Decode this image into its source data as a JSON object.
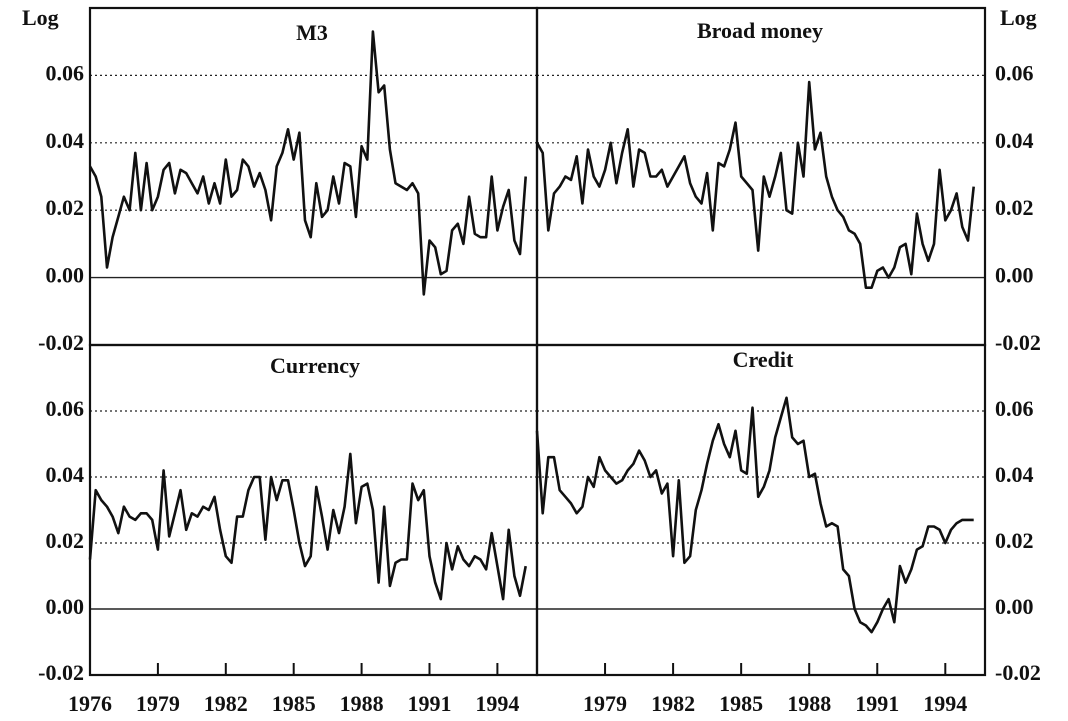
{
  "chart_data": [
    {
      "type": "line",
      "title": "M3",
      "ylabel": "Log",
      "color": "#111111",
      "x": [
        1976,
        1976.25,
        1976.5,
        1976.75,
        1977,
        1977.25,
        1977.5,
        1977.75,
        1978,
        1978.25,
        1978.5,
        1978.75,
        1979,
        1979.25,
        1979.5,
        1979.75,
        1980,
        1980.25,
        1980.5,
        1980.75,
        1981,
        1981.25,
        1981.5,
        1981.75,
        1982,
        1982.25,
        1982.5,
        1982.75,
        1983,
        1983.25,
        1983.5,
        1983.75,
        1984,
        1984.25,
        1984.5,
        1984.75,
        1985,
        1985.25,
        1985.5,
        1985.75,
        1986,
        1986.25,
        1986.5,
        1986.75,
        1987,
        1987.25,
        1987.5,
        1987.75,
        1988,
        1988.25,
        1988.5,
        1988.75,
        1989,
        1989.25,
        1989.5,
        1989.75,
        1990,
        1990.25,
        1990.5,
        1990.75,
        1991,
        1991.25,
        1991.5,
        1991.75,
        1992,
        1992.25,
        1992.5,
        1992.75,
        1993,
        1993.25,
        1993.5,
        1993.75,
        1994,
        1994.25,
        1994.5,
        1994.75,
        1995,
        1995.25
      ],
      "values": [
        0.033,
        0.03,
        0.024,
        0.003,
        0.012,
        0.018,
        0.024,
        0.02,
        0.037,
        0.02,
        0.034,
        0.02,
        0.024,
        0.032,
        0.034,
        0.025,
        0.032,
        0.031,
        0.028,
        0.025,
        0.03,
        0.022,
        0.028,
        0.022,
        0.035,
        0.024,
        0.026,
        0.035,
        0.033,
        0.027,
        0.031,
        0.026,
        0.017,
        0.033,
        0.037,
        0.044,
        0.035,
        0.043,
        0.017,
        0.012,
        0.028,
        0.018,
        0.02,
        0.03,
        0.022,
        0.034,
        0.033,
        0.018,
        0.039,
        0.035,
        0.073,
        0.055,
        0.057,
        0.038,
        0.028,
        0.027,
        0.026,
        0.028,
        0.025,
        -0.005,
        0.011,
        0.009,
        0.001,
        0.002,
        0.014,
        0.016,
        0.01,
        0.024,
        0.013,
        0.012,
        0.012,
        0.03,
        0.014,
        0.021,
        0.026,
        0.011,
        0.007,
        0.03
      ],
      "xlim": [
        1976,
        1995.75
      ],
      "ylim": [
        -0.02,
        0.08
      ],
      "yticks": [
        {
          "value": -0.02,
          "label": "-0.02"
        },
        {
          "value": 0,
          "label": "0.00"
        },
        {
          "value": 0.02,
          "label": "0.02"
        },
        {
          "value": 0.04,
          "label": "0.04"
        },
        {
          "value": 0.06,
          "label": "0.06"
        }
      ],
      "grid": true
    },
    {
      "type": "line",
      "title": "Broad money",
      "ylabel": "Log",
      "color": "#111111",
      "x": [
        1976,
        1976.25,
        1976.5,
        1976.75,
        1977,
        1977.25,
        1977.5,
        1977.75,
        1978,
        1978.25,
        1978.5,
        1978.75,
        1979,
        1979.25,
        1979.5,
        1979.75,
        1980,
        1980.25,
        1980.5,
        1980.75,
        1981,
        1981.25,
        1981.5,
        1981.75,
        1982,
        1982.25,
        1982.5,
        1982.75,
        1983,
        1983.25,
        1983.5,
        1983.75,
        1984,
        1984.25,
        1984.5,
        1984.75,
        1985,
        1985.25,
        1985.5,
        1985.75,
        1986,
        1986.25,
        1986.5,
        1986.75,
        1987,
        1987.25,
        1987.5,
        1987.75,
        1988,
        1988.25,
        1988.5,
        1988.75,
        1989,
        1989.25,
        1989.5,
        1989.75,
        1990,
        1990.25,
        1990.5,
        1990.75,
        1991,
        1991.25,
        1991.5,
        1991.75,
        1992,
        1992.25,
        1992.5,
        1992.75,
        1993,
        1993.25,
        1993.5,
        1993.75,
        1994,
        1994.25,
        1994.5,
        1994.75,
        1995,
        1995.25
      ],
      "values": [
        0.04,
        0.037,
        0.014,
        0.025,
        0.027,
        0.03,
        0.029,
        0.036,
        0.022,
        0.038,
        0.03,
        0.027,
        0.032,
        0.04,
        0.028,
        0.037,
        0.044,
        0.027,
        0.038,
        0.037,
        0.03,
        0.03,
        0.032,
        0.027,
        0.03,
        0.033,
        0.036,
        0.028,
        0.024,
        0.022,
        0.031,
        0.014,
        0.034,
        0.033,
        0.038,
        0.046,
        0.03,
        0.028,
        0.026,
        0.008,
        0.03,
        0.024,
        0.03,
        0.037,
        0.02,
        0.019,
        0.04,
        0.03,
        0.058,
        0.038,
        0.043,
        0.03,
        0.024,
        0.02,
        0.018,
        0.014,
        0.013,
        0.01,
        -0.003,
        -0.003,
        0.002,
        0.003,
        0.0,
        0.003,
        0.009,
        0.01,
        0.001,
        0.019,
        0.01,
        0.005,
        0.01,
        0.032,
        0.017,
        0.02,
        0.025,
        0.015,
        0.011,
        0.027
      ],
      "xlim": [
        1976,
        1995.75
      ],
      "ylim": [
        -0.02,
        0.08
      ],
      "yticks": [
        {
          "value": -0.02,
          "label": "-0.02"
        },
        {
          "value": 0,
          "label": "0.00"
        },
        {
          "value": 0.02,
          "label": "0.02"
        },
        {
          "value": 0.04,
          "label": "0.04"
        },
        {
          "value": 0.06,
          "label": "0.06"
        }
      ],
      "grid": true
    },
    {
      "type": "line",
      "title": "Currency",
      "color": "#111111",
      "x": [
        1976,
        1976.25,
        1976.5,
        1976.75,
        1977,
        1977.25,
        1977.5,
        1977.75,
        1978,
        1978.25,
        1978.5,
        1978.75,
        1979,
        1979.25,
        1979.5,
        1979.75,
        1980,
        1980.25,
        1980.5,
        1980.75,
        1981,
        1981.25,
        1981.5,
        1981.75,
        1982,
        1982.25,
        1982.5,
        1982.75,
        1983,
        1983.25,
        1983.5,
        1983.75,
        1984,
        1984.25,
        1984.5,
        1984.75,
        1985,
        1985.25,
        1985.5,
        1985.75,
        1986,
        1986.25,
        1986.5,
        1986.75,
        1987,
        1987.25,
        1987.5,
        1987.75,
        1988,
        1988.25,
        1988.5,
        1988.75,
        1989,
        1989.25,
        1989.5,
        1989.75,
        1990,
        1990.25,
        1990.5,
        1990.75,
        1991,
        1991.25,
        1991.5,
        1991.75,
        1992,
        1992.25,
        1992.5,
        1992.75,
        1993,
        1993.25,
        1993.5,
        1993.75,
        1994,
        1994.25,
        1994.5,
        1994.75,
        1995,
        1995.25
      ],
      "values": [
        0.015,
        0.036,
        0.033,
        0.031,
        0.028,
        0.023,
        0.031,
        0.028,
        0.027,
        0.029,
        0.029,
        0.027,
        0.018,
        0.042,
        0.022,
        0.029,
        0.036,
        0.024,
        0.029,
        0.028,
        0.031,
        0.03,
        0.034,
        0.024,
        0.016,
        0.014,
        0.028,
        0.028,
        0.036,
        0.04,
        0.04,
        0.021,
        0.04,
        0.033,
        0.039,
        0.039,
        0.03,
        0.02,
        0.013,
        0.016,
        0.037,
        0.028,
        0.018,
        0.03,
        0.023,
        0.031,
        0.047,
        0.026,
        0.037,
        0.038,
        0.03,
        0.008,
        0.031,
        0.007,
        0.014,
        0.015,
        0.015,
        0.038,
        0.033,
        0.036,
        0.016,
        0.008,
        0.003,
        0.02,
        0.012,
        0.019,
        0.015,
        0.013,
        0.016,
        0.015,
        0.012,
        0.023,
        0.013,
        0.003,
        0.024,
        0.01,
        0.004,
        0.013
      ],
      "xlim": [
        1976,
        1995.75
      ],
      "ylim": [
        -0.02,
        0.08
      ],
      "xticks": [
        1976,
        1979,
        1982,
        1985,
        1988,
        1991,
        1994
      ],
      "yticks": [
        {
          "value": -0.02,
          "label": "-0.02"
        },
        {
          "value": 0,
          "label": "0.00"
        },
        {
          "value": 0.02,
          "label": "0.02"
        },
        {
          "value": 0.04,
          "label": "0.04"
        },
        {
          "value": 0.06,
          "label": "0.06"
        }
      ],
      "grid": true
    },
    {
      "type": "line",
      "title": "Credit",
      "color": "#111111",
      "x": [
        1976,
        1976.25,
        1976.5,
        1976.75,
        1977,
        1977.25,
        1977.5,
        1977.75,
        1978,
        1978.25,
        1978.5,
        1978.75,
        1979,
        1979.25,
        1979.5,
        1979.75,
        1980,
        1980.25,
        1980.5,
        1980.75,
        1981,
        1981.25,
        1981.5,
        1981.75,
        1982,
        1982.25,
        1982.5,
        1982.75,
        1983,
        1983.25,
        1983.5,
        1983.75,
        1984,
        1984.25,
        1984.5,
        1984.75,
        1985,
        1985.25,
        1985.5,
        1985.75,
        1986,
        1986.25,
        1986.5,
        1986.75,
        1987,
        1987.25,
        1987.5,
        1987.75,
        1988,
        1988.25,
        1988.5,
        1988.75,
        1989,
        1989.25,
        1989.5,
        1989.75,
        1990,
        1990.25,
        1990.5,
        1990.75,
        1991,
        1991.25,
        1991.5,
        1991.75,
        1992,
        1992.25,
        1992.5,
        1992.75,
        1993,
        1993.25,
        1993.5,
        1993.75,
        1994,
        1994.25,
        1994.5,
        1994.75,
        1995,
        1995.25
      ],
      "values": [
        0.054,
        0.029,
        0.046,
        0.046,
        0.036,
        0.034,
        0.032,
        0.029,
        0.031,
        0.04,
        0.037,
        0.046,
        0.042,
        0.04,
        0.038,
        0.039,
        0.042,
        0.044,
        0.048,
        0.045,
        0.04,
        0.042,
        0.035,
        0.038,
        0.016,
        0.039,
        0.014,
        0.016,
        0.03,
        0.036,
        0.044,
        0.051,
        0.056,
        0.05,
        0.046,
        0.054,
        0.042,
        0.041,
        0.061,
        0.034,
        0.037,
        0.042,
        0.052,
        0.058,
        0.064,
        0.052,
        0.05,
        0.051,
        0.04,
        0.041,
        0.032,
        0.025,
        0.026,
        0.025,
        0.012,
        0.01,
        0.0,
        -0.004,
        -0.005,
        -0.007,
        -0.004,
        0.0,
        0.003,
        -0.004,
        0.013,
        0.008,
        0.012,
        0.018,
        0.019,
        0.025,
        0.025,
        0.024,
        0.02,
        0.024,
        0.026,
        0.027,
        0.027,
        0.027
      ],
      "xlim": [
        1976,
        1995.75
      ],
      "ylim": [
        -0.02,
        0.08
      ],
      "xticks": [
        1979,
        1982,
        1985,
        1988,
        1991,
        1994
      ],
      "yticks": [
        {
          "value": -0.02,
          "label": "-0.02"
        },
        {
          "value": 0,
          "label": "0.00"
        },
        {
          "value": 0.02,
          "label": "0.02"
        },
        {
          "value": 0.04,
          "label": "0.04"
        },
        {
          "value": 0.06,
          "label": "0.06"
        }
      ],
      "grid": true
    }
  ]
}
